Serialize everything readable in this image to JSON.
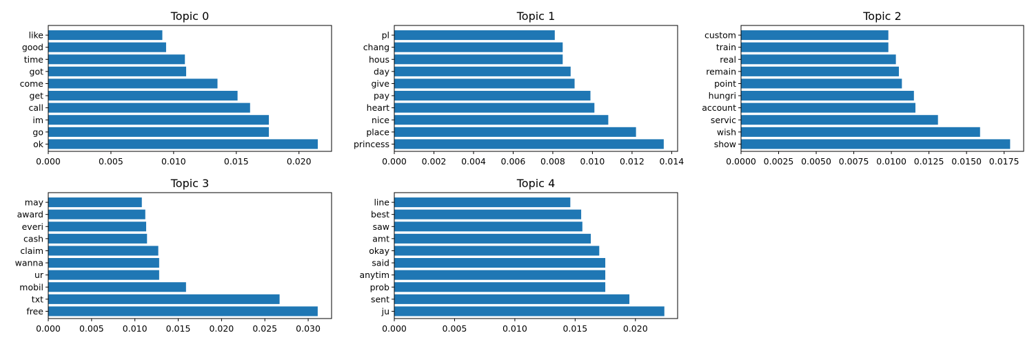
{
  "chart_data": [
    {
      "type": "bar",
      "orientation": "horizontal",
      "title": "Topic 0",
      "color": "#1f77b4",
      "categories": [
        "ok",
        "go",
        "im",
        "call",
        "get",
        "come",
        "got",
        "time",
        "good",
        "like"
      ],
      "values": [
        0.0215,
        0.0176,
        0.0176,
        0.0161,
        0.0151,
        0.0135,
        0.011,
        0.0109,
        0.0094,
        0.0091
      ],
      "xlim": [
        0,
        0.0226
      ],
      "xticks": [
        "0.000",
        "0.005",
        "0.010",
        "0.015",
        "0.020"
      ],
      "xtick_values": [
        0,
        0.005,
        0.01,
        0.015,
        0.02
      ]
    },
    {
      "type": "bar",
      "orientation": "horizontal",
      "title": "Topic 1",
      "color": "#1f77b4",
      "categories": [
        "princess",
        "place",
        "nice",
        "heart",
        "pay",
        "give",
        "day",
        "hous",
        "chang",
        "pl"
      ],
      "values": [
        0.0136,
        0.0122,
        0.0108,
        0.0101,
        0.0099,
        0.0091,
        0.0089,
        0.0085,
        0.0085,
        0.0081
      ],
      "xlim": [
        0,
        0.0143
      ],
      "xticks": [
        "0.000",
        "0.002",
        "0.004",
        "0.006",
        "0.008",
        "0.010",
        "0.012",
        "0.014"
      ],
      "xtick_values": [
        0,
        0.002,
        0.004,
        0.006,
        0.008,
        0.01,
        0.012,
        0.014
      ]
    },
    {
      "type": "bar",
      "orientation": "horizontal",
      "title": "Topic 2",
      "color": "#1f77b4",
      "categories": [
        "show",
        "wish",
        "servic",
        "account",
        "hungri",
        "point",
        "remain",
        "real",
        "train",
        "custom"
      ],
      "values": [
        0.0179,
        0.0159,
        0.0131,
        0.0116,
        0.0115,
        0.0107,
        0.0105,
        0.0103,
        0.0098,
        0.0098
      ],
      "xlim": [
        0,
        0.0188
      ],
      "xticks": [
        "0.0000",
        "0.0025",
        "0.0050",
        "0.0075",
        "0.0100",
        "0.0125",
        "0.0150",
        "0.0175"
      ],
      "xtick_values": [
        0,
        0.0025,
        0.005,
        0.0075,
        0.01,
        0.0125,
        0.015,
        0.0175
      ]
    },
    {
      "type": "bar",
      "orientation": "horizontal",
      "title": "Topic 3",
      "color": "#1f77b4",
      "categories": [
        "free",
        "txt",
        "mobil",
        "ur",
        "wanna",
        "claim",
        "cash",
        "everi",
        "award",
        "may"
      ],
      "values": [
        0.0311,
        0.0267,
        0.0159,
        0.0128,
        0.0128,
        0.0127,
        0.0114,
        0.0113,
        0.0112,
        0.0108
      ],
      "xlim": [
        0,
        0.0327
      ],
      "xticks": [
        "0.000",
        "0.005",
        "0.010",
        "0.015",
        "0.020",
        "0.025",
        "0.030"
      ],
      "xtick_values": [
        0,
        0.005,
        0.01,
        0.015,
        0.02,
        0.025,
        0.03
      ]
    },
    {
      "type": "bar",
      "orientation": "horizontal",
      "title": "Topic 4",
      "color": "#1f77b4",
      "categories": [
        "ju",
        "sent",
        "prob",
        "anytim",
        "said",
        "okay",
        "amt",
        "saw",
        "best",
        "line"
      ],
      "values": [
        0.0224,
        0.0195,
        0.0175,
        0.0175,
        0.0175,
        0.017,
        0.0163,
        0.0156,
        0.0155,
        0.0146
      ],
      "xlim": [
        0,
        0.0235
      ],
      "xticks": [
        "0.000",
        "0.005",
        "0.010",
        "0.015",
        "0.020"
      ],
      "xtick_values": [
        0,
        0.005,
        0.01,
        0.015,
        0.02
      ]
    }
  ]
}
